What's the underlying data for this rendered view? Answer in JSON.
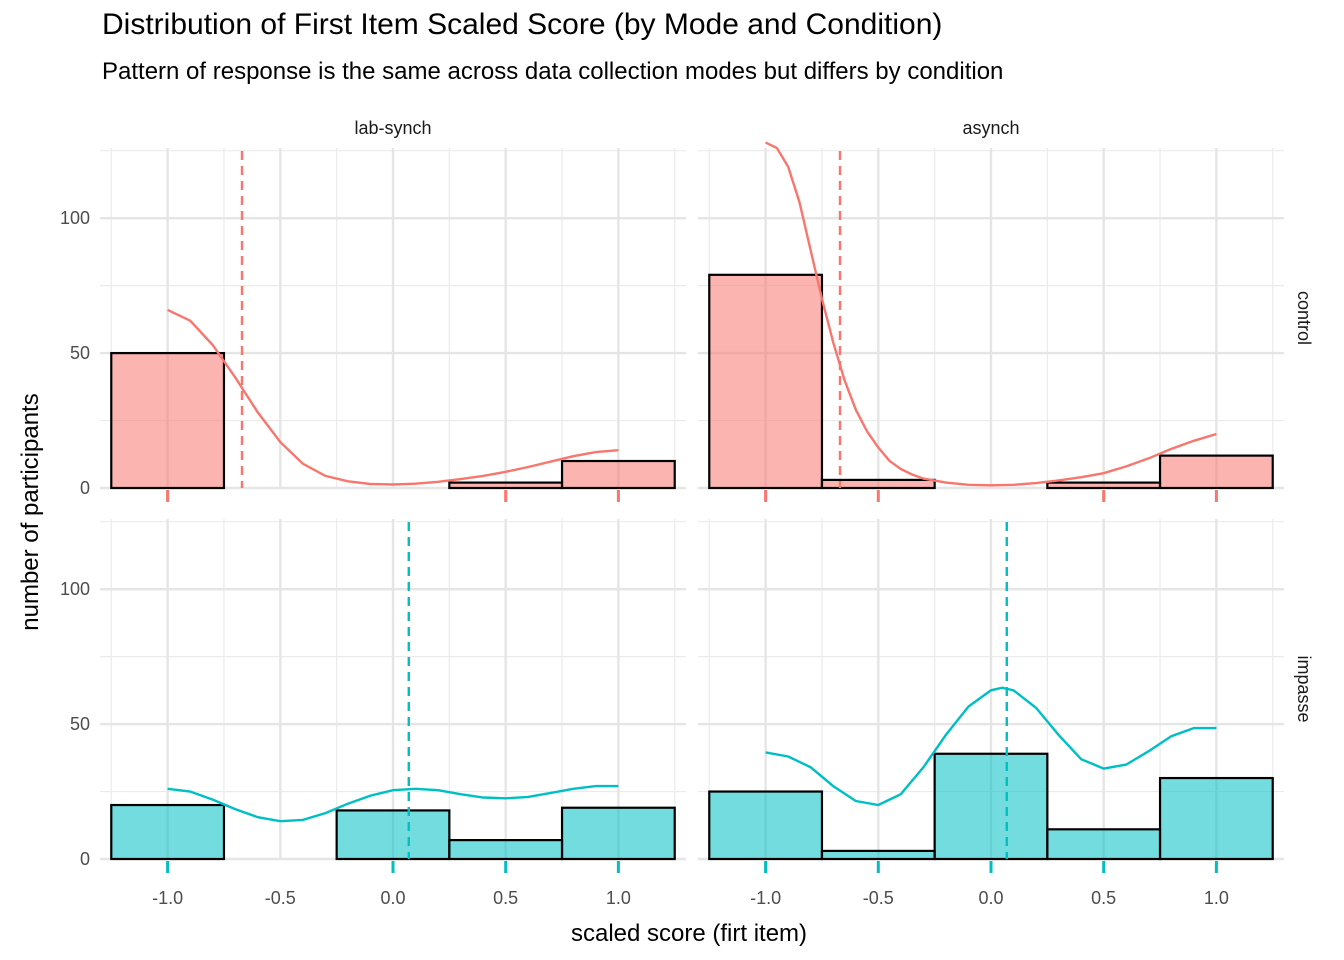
{
  "title": "Distribution of First Item Scaled Score (by Mode and Condition)",
  "subtitle": "Pattern of response is the same across data collection modes but differs by condition",
  "chart_data": {
    "type": "histogram",
    "title": "Distribution of First Item Scaled Score (by Mode and Condition)",
    "subtitle": "Pattern of response is the same across data collection modes but differs by condition",
    "xlabel": "scaled score (firt item)",
    "ylabel": "number of participants",
    "xlim": [
      -1.3,
      1.3
    ],
    "ylim": [
      0,
      126
    ],
    "x_ticks": [
      -1.0,
      -0.5,
      0.0,
      0.5,
      1.0
    ],
    "x_tick_labels": [
      "-1.0",
      "-0.5",
      "0.0",
      "0.5",
      "1.0"
    ],
    "y_ticks": [
      0,
      50,
      100
    ],
    "y_tick_labels": [
      "0",
      "50",
      "100"
    ],
    "grid": true,
    "bin_edges": [
      -1.25,
      -0.75,
      -0.25,
      0.25,
      0.75,
      1.25
    ],
    "column_facets": [
      "lab-synch",
      "asynch"
    ],
    "row_facets": [
      "control",
      "impasse"
    ],
    "colors": {
      "control": "#F8766D",
      "impasse": "#00BFC4"
    },
    "panels": [
      {
        "mode": "lab-synch",
        "condition": "control",
        "counts": [
          50,
          0,
          0,
          2,
          10
        ],
        "mean": -0.67,
        "rug": [
          -1.0,
          0.5,
          1.0
        ],
        "density": [
          [
            -1.0,
            66
          ],
          [
            -0.9,
            62
          ],
          [
            -0.8,
            53
          ],
          [
            -0.7,
            41
          ],
          [
            -0.6,
            28
          ],
          [
            -0.5,
            17
          ],
          [
            -0.4,
            9
          ],
          [
            -0.3,
            4.5
          ],
          [
            -0.2,
            2.5
          ],
          [
            -0.1,
            1.5
          ],
          [
            0.0,
            1.3
          ],
          [
            0.1,
            1.6
          ],
          [
            0.2,
            2.3
          ],
          [
            0.3,
            3.3
          ],
          [
            0.4,
            4.5
          ],
          [
            0.5,
            6
          ],
          [
            0.6,
            7.8
          ],
          [
            0.7,
            9.8
          ],
          [
            0.8,
            11.8
          ],
          [
            0.9,
            13.3
          ],
          [
            1.0,
            14
          ]
        ]
      },
      {
        "mode": "asynch",
        "condition": "control",
        "counts": [
          79,
          3,
          0,
          2,
          12
        ],
        "mean": -0.67,
        "rug": [
          -1.0,
          -0.5,
          0.5,
          1.0
        ],
        "density": [
          [
            -1.0,
            128
          ],
          [
            -0.95,
            126
          ],
          [
            -0.9,
            119
          ],
          [
            -0.85,
            106
          ],
          [
            -0.8,
            88
          ],
          [
            -0.75,
            70
          ],
          [
            -0.7,
            54
          ],
          [
            -0.65,
            40
          ],
          [
            -0.6,
            29
          ],
          [
            -0.55,
            21
          ],
          [
            -0.5,
            15
          ],
          [
            -0.45,
            10
          ],
          [
            -0.4,
            7
          ],
          [
            -0.35,
            5
          ],
          [
            -0.3,
            3.5
          ],
          [
            -0.2,
            2
          ],
          [
            -0.1,
            1.2
          ],
          [
            0.0,
            1
          ],
          [
            0.1,
            1.2
          ],
          [
            0.2,
            1.8
          ],
          [
            0.3,
            2.8
          ],
          [
            0.4,
            4
          ],
          [
            0.5,
            5.5
          ],
          [
            0.6,
            8
          ],
          [
            0.7,
            11
          ],
          [
            0.8,
            14.5
          ],
          [
            0.9,
            17.5
          ],
          [
            1.0,
            20
          ]
        ]
      },
      {
        "mode": "lab-synch",
        "condition": "impasse",
        "counts": [
          20,
          0,
          18,
          7,
          19
        ],
        "mean": 0.07,
        "rug": [
          -1.0,
          0.0,
          0.5,
          1.0
        ],
        "density": [
          [
            -1.0,
            26
          ],
          [
            -0.9,
            25
          ],
          [
            -0.8,
            22
          ],
          [
            -0.7,
            18.5
          ],
          [
            -0.6,
            15.5
          ],
          [
            -0.5,
            14
          ],
          [
            -0.4,
            14.5
          ],
          [
            -0.3,
            17
          ],
          [
            -0.2,
            20.5
          ],
          [
            -0.1,
            23.5
          ],
          [
            0.0,
            25.5
          ],
          [
            0.1,
            26
          ],
          [
            0.2,
            25.5
          ],
          [
            0.3,
            24
          ],
          [
            0.4,
            22.8
          ],
          [
            0.5,
            22.5
          ],
          [
            0.6,
            23
          ],
          [
            0.7,
            24.5
          ],
          [
            0.8,
            26
          ],
          [
            0.9,
            27
          ],
          [
            1.0,
            27
          ]
        ]
      },
      {
        "mode": "asynch",
        "condition": "impasse",
        "counts": [
          25,
          3,
          39,
          11,
          30
        ],
        "mean": 0.07,
        "rug": [
          -1.0,
          -0.5,
          0.0,
          0.5,
          1.0
        ],
        "density": [
          [
            -1.0,
            39.5
          ],
          [
            -0.9,
            38
          ],
          [
            -0.8,
            34
          ],
          [
            -0.7,
            27
          ],
          [
            -0.6,
            21.5
          ],
          [
            -0.5,
            20
          ],
          [
            -0.4,
            24
          ],
          [
            -0.3,
            34
          ],
          [
            -0.2,
            46
          ],
          [
            -0.1,
            56.5
          ],
          [
            0.0,
            62.5
          ],
          [
            0.05,
            63.5
          ],
          [
            0.1,
            62.5
          ],
          [
            0.2,
            56
          ],
          [
            0.3,
            46
          ],
          [
            0.4,
            37
          ],
          [
            0.5,
            33.5
          ],
          [
            0.6,
            35
          ],
          [
            0.7,
            40
          ],
          [
            0.8,
            45.5
          ],
          [
            0.9,
            48.5
          ],
          [
            1.0,
            48.5
          ]
        ]
      }
    ]
  }
}
